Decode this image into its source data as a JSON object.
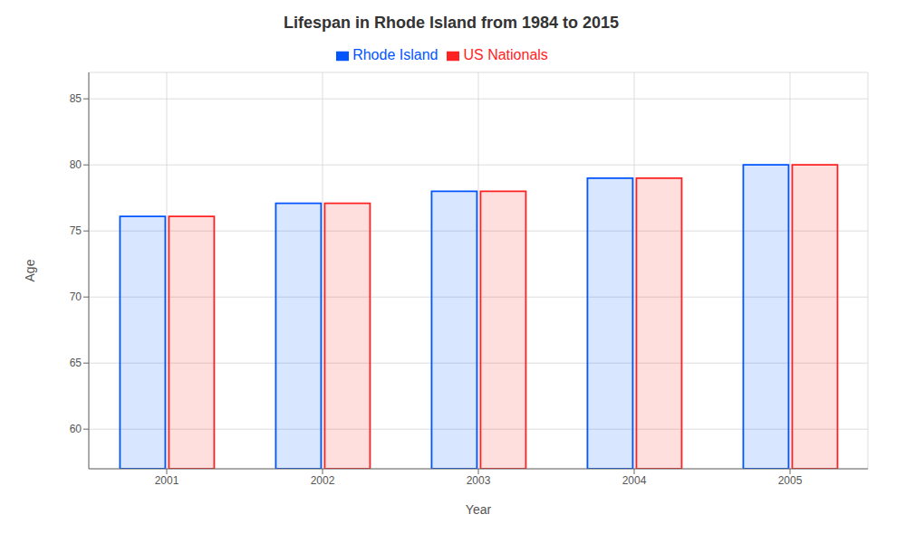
{
  "chart_data": {
    "type": "bar",
    "title": "Lifespan in Rhode Island from 1984 to 2015",
    "x_label": "Year",
    "y_label": "Age",
    "categories": [
      "2001",
      "2002",
      "2003",
      "2004",
      "2005"
    ],
    "series": [
      {
        "name": "Rhode Island",
        "color": "#0055ff",
        "values": [
          76.1,
          77.1,
          78.0,
          79.0,
          80.0
        ]
      },
      {
        "name": "US Nationals",
        "color": "#ff2222",
        "values": [
          76.1,
          77.1,
          78.0,
          79.0,
          80.0
        ]
      }
    ],
    "ylim": [
      57,
      87
    ],
    "yticks": [
      60,
      65,
      70,
      75,
      80,
      85
    ],
    "grid": true,
    "legend": "top"
  }
}
